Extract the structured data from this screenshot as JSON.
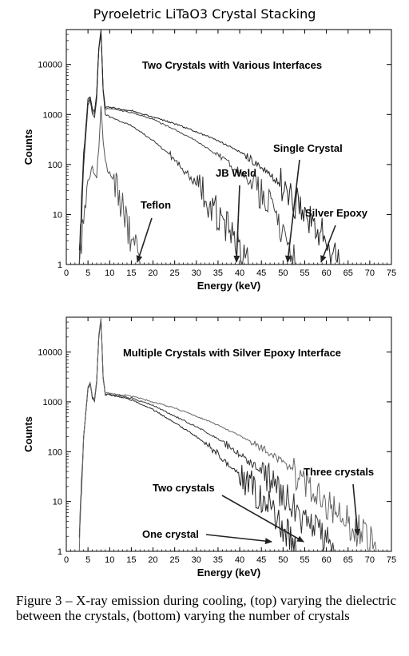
{
  "figure": {
    "title": "Pyroeletric LiTaO3 Crystal Stacking",
    "caption": "Figure 3 – X-ray emission during cooling, (top) varying the dielectric between the crystals, (bottom) varying the number of crystals"
  },
  "chart_data": [
    {
      "type": "line",
      "title": "Two Crystals with Various Interfaces",
      "xlabel": "Energy (keV)",
      "ylabel": "Counts",
      "xlim": [
        0,
        75
      ],
      "ylim": [
        1,
        50000
      ],
      "yscale": "log",
      "xticks": [
        0,
        5,
        10,
        15,
        20,
        25,
        30,
        35,
        40,
        45,
        50,
        55,
        60,
        65,
        70,
        75
      ],
      "yticks": [
        1,
        10,
        100,
        1000,
        10000
      ],
      "grid": false,
      "series": [
        {
          "name": "Teflon",
          "color": "#555555",
          "x": [
            3,
            4,
            5,
            6,
            6.5,
            7,
            7.5,
            8,
            8.5,
            9,
            10,
            12,
            14,
            16,
            17
          ],
          "y": [
            1,
            8,
            50,
            90,
            70,
            60,
            200,
            1500,
            300,
            120,
            60,
            25,
            6,
            2,
            1
          ]
        },
        {
          "name": "JB Weld",
          "color": "#333333",
          "x": [
            3,
            4,
            5,
            5.5,
            6,
            6.5,
            7,
            7.5,
            8,
            8.5,
            9,
            10,
            15,
            20,
            25,
            30,
            35,
            38,
            40,
            42
          ],
          "y": [
            1,
            100,
            1500,
            2000,
            1000,
            900,
            2000,
            20000,
            45000,
            3000,
            1000,
            900,
            600,
            300,
            130,
            40,
            10,
            4,
            2,
            1
          ]
        },
        {
          "name": "Single Crystal",
          "color": "#444444",
          "x": [
            3,
            4,
            5,
            5.5,
            6,
            6.5,
            7,
            7.5,
            8,
            8.5,
            9,
            10,
            15,
            20,
            25,
            30,
            35,
            40,
            45,
            50,
            53
          ],
          "y": [
            1,
            150,
            1800,
            2200,
            1200,
            1000,
            2500,
            20000,
            45000,
            3000,
            1300,
            1300,
            1100,
            800,
            500,
            300,
            150,
            70,
            25,
            5,
            1
          ]
        },
        {
          "name": "Silver Epoxy",
          "color": "#222222",
          "x": [
            3,
            4,
            5,
            5.5,
            6,
            6.5,
            7,
            7.5,
            8,
            8.5,
            9,
            10,
            15,
            20,
            25,
            30,
            35,
            40,
            45,
            50,
            55,
            60,
            63
          ],
          "y": [
            1,
            150,
            2000,
            2300,
            1300,
            1100,
            2700,
            22000,
            48000,
            3200,
            1400,
            1400,
            1200,
            900,
            650,
            450,
            300,
            180,
            90,
            35,
            10,
            3,
            1
          ]
        }
      ],
      "annotations": [
        "Teflon",
        "JB Weld",
        "Single Crystal",
        "Silver Epoxy"
      ]
    },
    {
      "type": "line",
      "title": "Multiple Crystals with Silver Epoxy Interface",
      "xlabel": "Energy (keV)",
      "ylabel": "Counts",
      "xlim": [
        0,
        75
      ],
      "ylim": [
        1,
        50000
      ],
      "yscale": "log",
      "xticks": [
        0,
        5,
        10,
        15,
        20,
        25,
        30,
        35,
        40,
        45,
        50,
        55,
        60,
        65,
        70,
        75
      ],
      "yticks": [
        1,
        10,
        100,
        1000,
        10000
      ],
      "grid": false,
      "series": [
        {
          "name": "One crystal",
          "color": "#222222",
          "x": [
            3,
            4,
            5,
            5.5,
            6,
            6.5,
            7,
            7.5,
            8,
            8.5,
            9,
            10,
            15,
            20,
            25,
            30,
            35,
            40,
            45,
            50,
            53
          ],
          "y": [
            1,
            200,
            1800,
            2400,
            1200,
            1000,
            2500,
            20000,
            45000,
            3000,
            1400,
            1400,
            1100,
            700,
            380,
            200,
            90,
            35,
            12,
            3,
            1
          ]
        },
        {
          "name": "Two crystals",
          "color": "#333333",
          "x": [
            3,
            4,
            5,
            5.5,
            6,
            6.5,
            7,
            7.5,
            8,
            8.5,
            9,
            10,
            15,
            20,
            25,
            30,
            35,
            40,
            45,
            50,
            55,
            60,
            62
          ],
          "y": [
            1,
            200,
            1900,
            2400,
            1300,
            1100,
            2600,
            21000,
            46000,
            3100,
            1400,
            1400,
            1200,
            850,
            520,
            320,
            180,
            90,
            40,
            14,
            4,
            1.5,
            1
          ]
        },
        {
          "name": "Three crystals",
          "color": "#666666",
          "x": [
            3,
            4,
            5,
            5.5,
            6,
            6.5,
            7,
            7.5,
            8,
            8.5,
            9,
            10,
            15,
            20,
            25,
            30,
            35,
            40,
            45,
            50,
            55,
            60,
            65,
            70,
            72
          ],
          "y": [
            1,
            200,
            2000,
            2500,
            1300,
            1100,
            2700,
            22000,
            48000,
            3200,
            1500,
            1500,
            1300,
            1000,
            750,
            520,
            340,
            210,
            120,
            60,
            25,
            10,
            4,
            1.5,
            1
          ]
        }
      ],
      "annotations": [
        "Three crystals",
        "Two crystals",
        "One crystal"
      ]
    }
  ]
}
